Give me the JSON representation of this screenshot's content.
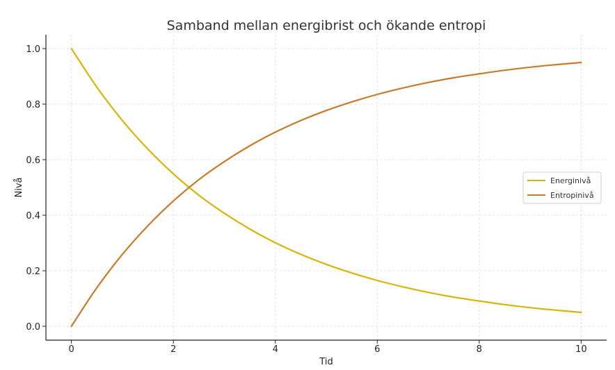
{
  "chart_data": {
    "type": "line",
    "title": "Samband mellan energibrist och ökande entropi",
    "xlabel": "Tid",
    "ylabel": "Nivå",
    "xlim": [
      -0.5,
      10.5
    ],
    "ylim": [
      -0.05,
      1.05
    ],
    "xticks": [
      "0",
      "2",
      "4",
      "6",
      "8",
      "10"
    ],
    "yticks": [
      "0.0",
      "0.2",
      "0.4",
      "0.6",
      "0.8",
      "1.0"
    ],
    "grid": true,
    "legend_position": "right",
    "x": [
      0,
      0.5,
      1,
      1.5,
      2,
      2.5,
      3,
      3.5,
      4,
      4.5,
      5,
      5.5,
      6,
      6.5,
      7,
      7.5,
      8,
      8.5,
      9,
      9.5,
      10
    ],
    "series": [
      {
        "name": "Energinivå",
        "color": "#DAB30A",
        "values": [
          1.0,
          0.861,
          0.741,
          0.638,
          0.549,
          0.472,
          0.407,
          0.35,
          0.301,
          0.259,
          0.223,
          0.192,
          0.165,
          0.142,
          0.122,
          0.105,
          0.091,
          0.078,
          0.067,
          0.058,
          0.05
        ]
      },
      {
        "name": "Entropinivå",
        "color": "#C8792A",
        "values": [
          0.0,
          0.139,
          0.259,
          0.362,
          0.451,
          0.528,
          0.593,
          0.65,
          0.699,
          0.741,
          0.777,
          0.808,
          0.835,
          0.858,
          0.878,
          0.895,
          0.909,
          0.922,
          0.933,
          0.942,
          0.95
        ]
      }
    ]
  }
}
